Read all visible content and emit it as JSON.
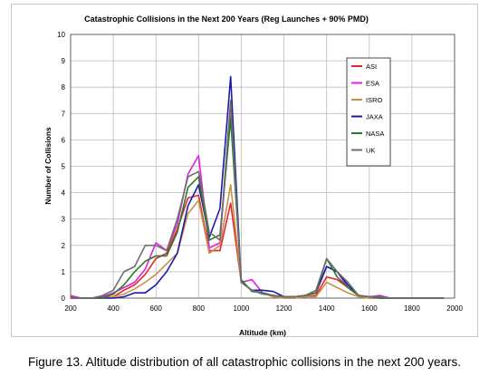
{
  "caption": "Figure 13. Altitude distribution of all catastrophic collisions in the next 200 years.",
  "chart_data": {
    "type": "line",
    "title": "Catastrophic Collisions in the Next 200 Years (Reg Launches + 90% PMD)",
    "xlabel": "Altitude (km)",
    "ylabel": "Number of Collisions",
    "xlim": [
      200,
      2000
    ],
    "ylim": [
      0,
      10
    ],
    "xticks": [
      200,
      400,
      600,
      800,
      1000,
      1200,
      1400,
      1600,
      1800,
      2000
    ],
    "yticks": [
      0,
      1,
      2,
      3,
      4,
      5,
      6,
      7,
      8,
      9,
      10
    ],
    "grid": true,
    "legend_position": "right, inside plot",
    "x": [
      200,
      250,
      300,
      350,
      400,
      450,
      500,
      550,
      600,
      650,
      700,
      750,
      800,
      850,
      900,
      950,
      1000,
      1050,
      1100,
      1150,
      1200,
      1250,
      1300,
      1350,
      1400,
      1450,
      1500,
      1550,
      1600,
      1650,
      1700,
      1750,
      1800,
      1850,
      1900,
      1950
    ],
    "series": [
      {
        "name": "ASI",
        "color": "#e8252a",
        "values": [
          0.05,
          0,
          0,
          0,
          0.05,
          0.3,
          0.5,
          0.9,
          1.5,
          1.7,
          2.6,
          3.8,
          3.9,
          1.8,
          1.8,
          3.6,
          0.6,
          0.3,
          0.2,
          0.05,
          0,
          0,
          0.05,
          0.1,
          0.8,
          0.7,
          0.4,
          0.1,
          0,
          0,
          0,
          0,
          0,
          0,
          0,
          0
        ]
      },
      {
        "name": "ESA",
        "color": "#e020e0",
        "values": [
          0.1,
          0,
          0,
          0.05,
          0.2,
          0.4,
          0.6,
          1.1,
          2.1,
          1.8,
          2.8,
          4.7,
          5.4,
          1.9,
          2.1,
          7.2,
          0.6,
          0.7,
          0.2,
          0.1,
          0.05,
          0.05,
          0.1,
          0.2,
          1.2,
          1.0,
          0.4,
          0.1,
          0.05,
          0.1,
          0,
          0,
          0,
          0,
          0,
          0
        ]
      },
      {
        "name": "ISRO",
        "color": "#c8914a",
        "values": [
          0,
          0,
          0,
          0,
          0.05,
          0.15,
          0.35,
          0.6,
          0.9,
          1.3,
          1.7,
          3.2,
          3.7,
          1.7,
          2.0,
          4.3,
          0.6,
          0.3,
          0.2,
          0.05,
          0,
          0,
          0.05,
          0.05,
          0.6,
          0.4,
          0.2,
          0.05,
          0,
          0,
          0,
          0,
          0,
          0,
          0,
          0
        ]
      },
      {
        "name": "JAXA",
        "color": "#1a1aa8",
        "values": [
          0,
          0,
          0,
          0,
          0,
          0.05,
          0.2,
          0.2,
          0.5,
          1.0,
          1.7,
          3.5,
          4.3,
          2.3,
          3.4,
          8.4,
          0.6,
          0.3,
          0.3,
          0.25,
          0.05,
          0.05,
          0.1,
          0.2,
          1.2,
          1.0,
          0.5,
          0.1,
          0.05,
          0,
          0,
          0,
          0,
          0,
          0,
          0
        ]
      },
      {
        "name": "NASA",
        "color": "#2a7a2a",
        "values": [
          0,
          0,
          0,
          0,
          0.15,
          0.5,
          1.0,
          1.4,
          1.6,
          1.6,
          2.5,
          4.2,
          4.6,
          2.2,
          2.4,
          6.8,
          0.7,
          0.25,
          0.2,
          0.1,
          0.05,
          0.05,
          0.1,
          0.2,
          1.5,
          0.8,
          0.4,
          0.1,
          0.05,
          0,
          0,
          0,
          0,
          0,
          0,
          0
        ]
      },
      {
        "name": "UK",
        "color": "#6e6e6e",
        "values": [
          0,
          0,
          0,
          0.1,
          0.3,
          1.0,
          1.2,
          2.0,
          2.0,
          1.8,
          3.0,
          4.6,
          4.8,
          2.5,
          2.2,
          7.5,
          0.6,
          0.3,
          0.15,
          0.1,
          0.05,
          0.05,
          0.1,
          0.3,
          1.5,
          1.0,
          0.6,
          0.1,
          0.05,
          0.05,
          0,
          0,
          0,
          0,
          0,
          0
        ]
      }
    ]
  }
}
